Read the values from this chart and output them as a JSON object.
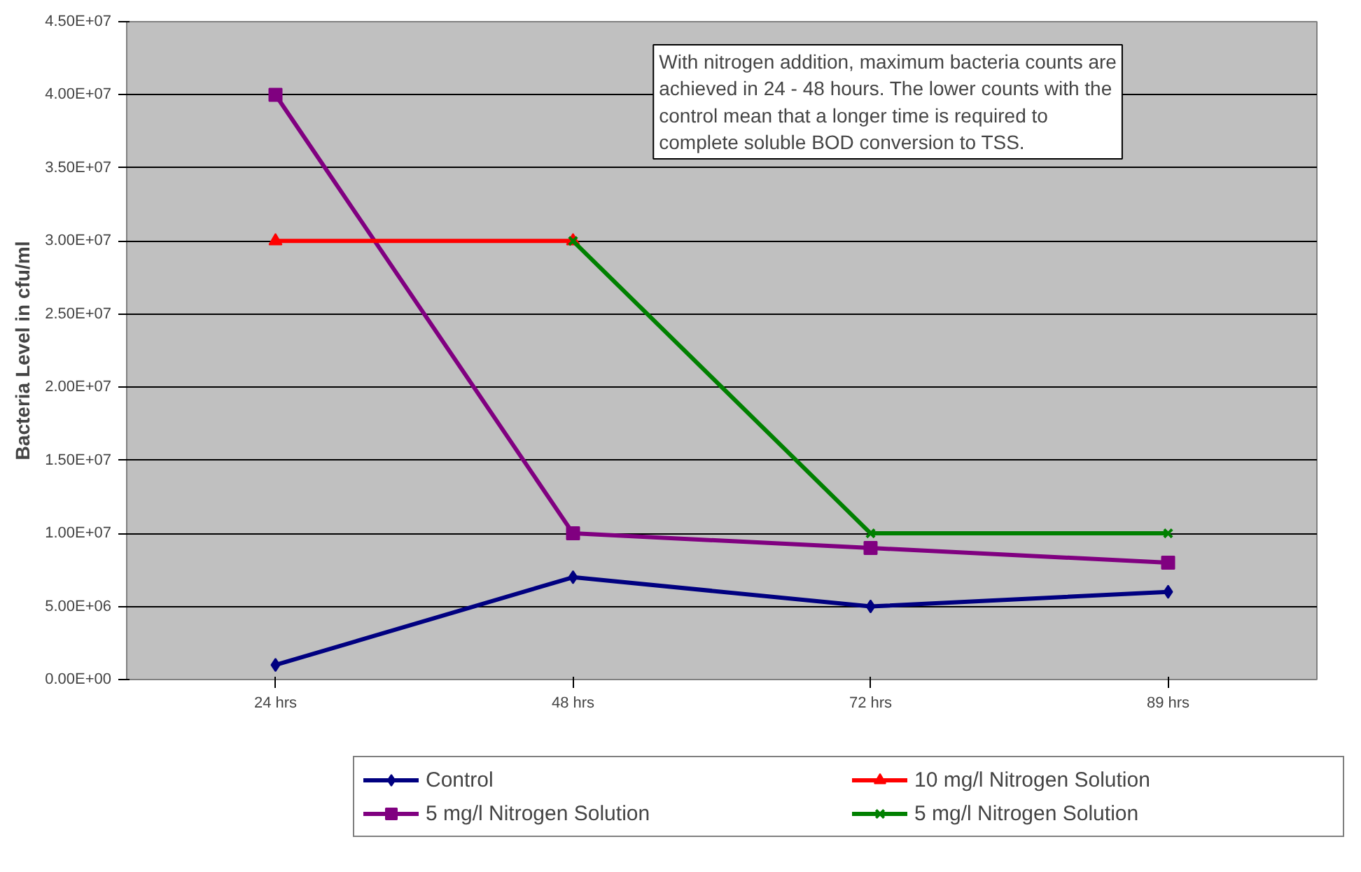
{
  "chart_data": {
    "type": "line",
    "ylabel": "Bacteria Level in cfu/ml",
    "categories": [
      "24 hrs",
      "48 hrs",
      "72 hrs",
      "89 hrs"
    ],
    "series": [
      {
        "name": "Control",
        "color": "#000080",
        "marker": "diamond",
        "values": [
          1000000,
          7000000,
          5000000,
          6000000
        ]
      },
      {
        "name": "5 mg/l Nitrogen Solution",
        "color": "#800080",
        "marker": "square",
        "values": [
          40000000,
          10000000,
          9000000,
          8000000
        ]
      },
      {
        "name": "10 mg/l Nitrogen Solution",
        "color": "#ff0000",
        "marker": "triangle",
        "values": [
          30000000,
          30000000,
          null,
          null
        ]
      },
      {
        "name": "5 mg/l Nitrogen Solution",
        "color": "#008000",
        "marker": "cross",
        "values": [
          null,
          30000000,
          10000000,
          10000000
        ]
      }
    ],
    "ylim": [
      0,
      45000000
    ],
    "yticks": [
      {
        "value": 0,
        "label": "0.00E+00"
      },
      {
        "value": 5000000,
        "label": "5.00E+06"
      },
      {
        "value": 10000000,
        "label": "1.00E+07"
      },
      {
        "value": 15000000,
        "label": "1.50E+07"
      },
      {
        "value": 20000000,
        "label": "2.00E+07"
      },
      {
        "value": 25000000,
        "label": "2.50E+07"
      },
      {
        "value": 30000000,
        "label": "3.00E+07"
      },
      {
        "value": 35000000,
        "label": "3.50E+07"
      },
      {
        "value": 40000000,
        "label": "4.00E+07"
      },
      {
        "value": 45000000,
        "label": "4.50E+07"
      }
    ],
    "grid": "y",
    "legend": "bottom",
    "line_style": "solid",
    "annotations": [
      "With nitrogen addition, maximum bacteria counts are achieved in 24 - 48 hours. The lower counts with the control mean that a longer time is required to complete soluble BOD conversion to TSS."
    ]
  }
}
